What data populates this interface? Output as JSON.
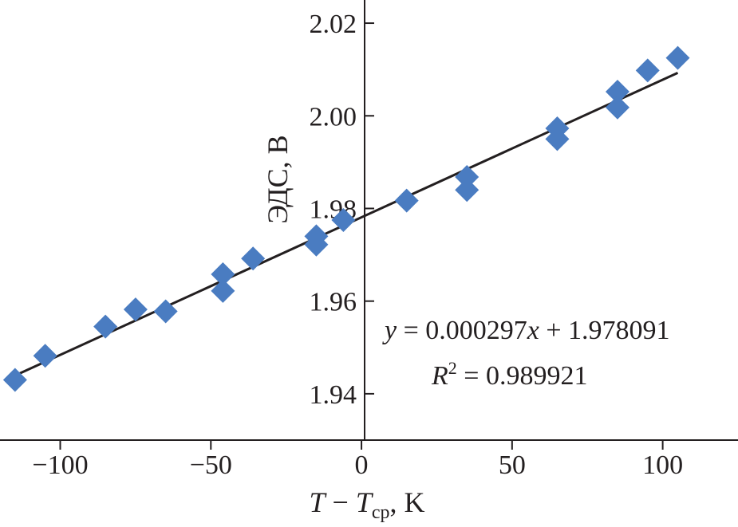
{
  "chart_data": {
    "type": "scatter",
    "xlabel": {
      "main": "T",
      "minus": " − ",
      "var": "T",
      "sub": "ср",
      "unit": ", K"
    },
    "ylabel": "ЭДС, В",
    "xlim": [
      -120,
      125
    ],
    "ylim": [
      1.93,
      2.025
    ],
    "x_ticks": [
      -100,
      -50,
      0,
      50,
      100
    ],
    "x_tick_labels": [
      "−100",
      "−50",
      "0",
      "50",
      "100"
    ],
    "y_ticks": [
      1.94,
      1.96,
      1.98,
      2.0,
      2.02
    ],
    "y_tick_labels": [
      "1.94",
      "1.96",
      "1.98",
      "2.00",
      "2.02"
    ],
    "grid": false,
    "marker": "diamond",
    "color": "#4a7cc1",
    "points": [
      {
        "x": -115,
        "y": 1.943
      },
      {
        "x": -105,
        "y": 1.9482
      },
      {
        "x": -85,
        "y": 1.9545
      },
      {
        "x": -75,
        "y": 1.9582
      },
      {
        "x": -65,
        "y": 1.9578
      },
      {
        "x": -46,
        "y": 1.9658
      },
      {
        "x": -46,
        "y": 1.9622
      },
      {
        "x": -36,
        "y": 1.9692
      },
      {
        "x": -15,
        "y": 1.974
      },
      {
        "x": -15,
        "y": 1.9722
      },
      {
        "x": -6,
        "y": 1.9775
      },
      {
        "x": 15,
        "y": 1.9817
      },
      {
        "x": 35,
        "y": 1.9868
      },
      {
        "x": 35,
        "y": 1.984
      },
      {
        "x": 65,
        "y": 1.9973
      },
      {
        "x": 65,
        "y": 1.995
      },
      {
        "x": 85,
        "y": 2.0052
      },
      {
        "x": 85,
        "y": 2.0018
      },
      {
        "x": 95,
        "y": 2.0098
      },
      {
        "x": 105,
        "y": 2.0125
      }
    ],
    "fit": {
      "slope": 0.000297,
      "intercept": 1.978091,
      "x_range": [
        -115,
        105
      ],
      "equation": {
        "y": "y",
        "eq1": " = 0.000297",
        "x": "x",
        "rest": " + 1.978091"
      },
      "r2": {
        "r": "R",
        "sup": "2",
        "rest": " = 0.989921"
      }
    }
  }
}
